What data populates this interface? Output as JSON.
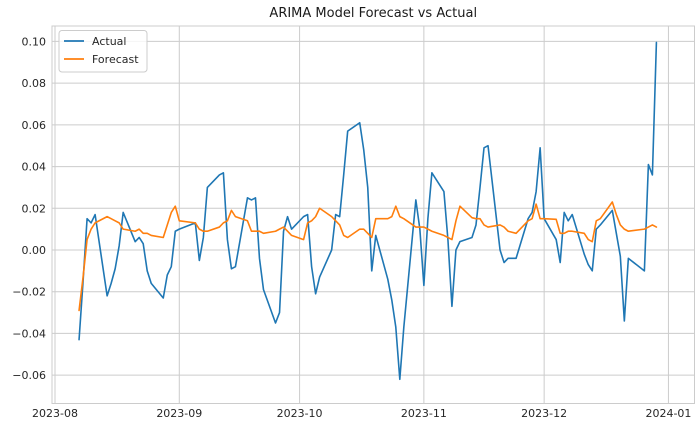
{
  "chart_data": {
    "type": "line",
    "title": "ARIMA Model Forecast vs Actual",
    "xlabel": "",
    "ylabel": "",
    "grid": true,
    "legend_position": "upper left",
    "background_color": "#ffffff",
    "grid_color": "#cccccc",
    "spine_color": "#cccccc",
    "text_color": "#262626",
    "title_color": "#1a1a1a",
    "xlim": [
      "2023-07-31T06:00:00",
      "2024-01-07T12:00:00"
    ],
    "ylim": [
      -0.0736,
      0.1074
    ],
    "y_ticks": [
      -0.06,
      -0.04,
      -0.02,
      0.0,
      0.02,
      0.04,
      0.06,
      0.08,
      0.1
    ],
    "x_tick_dates": [
      "2023-08-01",
      "2023-09-01",
      "2023-10-01",
      "2023-11-01",
      "2023-12-01",
      "2024-01-01"
    ],
    "x_tick_labels": [
      "2023-08",
      "2023-09",
      "2023-10",
      "2023-11",
      "2023-12",
      "2024-01"
    ],
    "x": [
      "2023-08-07",
      "2023-08-08",
      "2023-08-09",
      "2023-08-10",
      "2023-08-11",
      "2023-08-14",
      "2023-08-15",
      "2023-08-16",
      "2023-08-17",
      "2023-08-18",
      "2023-08-21",
      "2023-08-22",
      "2023-08-23",
      "2023-08-24",
      "2023-08-25",
      "2023-08-28",
      "2023-08-29",
      "2023-08-30",
      "2023-08-31",
      "2023-09-01",
      "2023-09-05",
      "2023-09-06",
      "2023-09-07",
      "2023-09-08",
      "2023-09-11",
      "2023-09-12",
      "2023-09-13",
      "2023-09-14",
      "2023-09-15",
      "2023-09-18",
      "2023-09-19",
      "2023-09-20",
      "2023-09-21",
      "2023-09-22",
      "2023-09-25",
      "2023-09-26",
      "2023-09-27",
      "2023-09-28",
      "2023-09-29",
      "2023-10-02",
      "2023-10-03",
      "2023-10-04",
      "2023-10-05",
      "2023-10-06",
      "2023-10-09",
      "2023-10-10",
      "2023-10-11",
      "2023-10-12",
      "2023-10-13",
      "2023-10-16",
      "2023-10-17",
      "2023-10-18",
      "2023-10-19",
      "2023-10-20",
      "2023-10-23",
      "2023-10-24",
      "2023-10-25",
      "2023-10-26",
      "2023-10-27",
      "2023-10-30",
      "2023-10-31",
      "2023-11-01",
      "2023-11-02",
      "2023-11-03",
      "2023-11-06",
      "2023-11-07",
      "2023-11-08",
      "2023-11-09",
      "2023-11-10",
      "2023-11-13",
      "2023-11-14",
      "2023-11-15",
      "2023-11-16",
      "2023-11-17",
      "2023-11-20",
      "2023-11-21",
      "2023-11-22",
      "2023-11-24",
      "2023-11-27",
      "2023-11-28",
      "2023-11-29",
      "2023-11-30",
      "2023-12-01",
      "2023-12-04",
      "2023-12-05",
      "2023-12-06",
      "2023-12-07",
      "2023-12-08",
      "2023-12-11",
      "2023-12-12",
      "2023-12-13",
      "2023-12-14",
      "2023-12-15",
      "2023-12-18",
      "2023-12-19",
      "2023-12-20",
      "2023-12-21",
      "2023-12-22",
      "2023-12-26",
      "2023-12-27",
      "2023-12-28",
      "2023-12-29"
    ],
    "series": [
      {
        "name": "Actual",
        "color": "#1f77b4",
        "values": [
          -0.043,
          -0.015,
          0.015,
          0.013,
          0.017,
          -0.022,
          -0.016,
          -0.009,
          0.002,
          0.018,
          0.004,
          0.006,
          0.003,
          -0.01,
          -0.016,
          -0.023,
          -0.012,
          -0.008,
          0.009,
          0.01,
          0.013,
          -0.005,
          0.006,
          0.03,
          0.036,
          0.037,
          0.005,
          -0.009,
          -0.008,
          0.025,
          0.024,
          0.025,
          -0.004,
          -0.019,
          -0.035,
          -0.03,
          0.009,
          0.016,
          0.01,
          0.016,
          0.017,
          -0.008,
          -0.021,
          -0.013,
          0.0,
          0.017,
          0.016,
          0.036,
          0.057,
          0.061,
          0.048,
          0.03,
          -0.01,
          0.007,
          -0.014,
          -0.024,
          -0.037,
          -0.062,
          -0.037,
          0.024,
          0.01,
          -0.017,
          0.015,
          0.037,
          0.028,
          0.005,
          -0.027,
          0.0,
          0.004,
          0.006,
          0.012,
          0.03,
          0.049,
          0.05,
          0.0,
          -0.006,
          -0.004,
          -0.004,
          0.015,
          0.018,
          0.028,
          0.049,
          0.015,
          0.005,
          -0.006,
          0.018,
          0.014,
          0.017,
          -0.002,
          -0.007,
          -0.01,
          0.01,
          0.012,
          0.019,
          0.008,
          -0.003,
          -0.034,
          -0.004,
          -0.01,
          0.041,
          0.036,
          0.0995
        ]
      },
      {
        "name": "Forecast",
        "color": "#ff7f0e",
        "values": [
          -0.029,
          -0.013,
          0.005,
          0.01,
          0.013,
          0.016,
          0.015,
          0.014,
          0.013,
          0.01,
          0.009,
          0.01,
          0.008,
          0.008,
          0.007,
          0.006,
          0.012,
          0.018,
          0.021,
          0.014,
          0.013,
          0.01,
          0.009,
          0.009,
          0.011,
          0.013,
          0.014,
          0.019,
          0.016,
          0.014,
          0.009,
          0.009,
          0.009,
          0.008,
          0.009,
          0.01,
          0.011,
          0.009,
          0.007,
          0.005,
          0.013,
          0.014,
          0.016,
          0.02,
          0.016,
          0.014,
          0.012,
          0.007,
          0.006,
          0.01,
          0.01,
          0.008,
          0.006,
          0.015,
          0.015,
          0.016,
          0.021,
          0.016,
          0.015,
          0.011,
          0.011,
          0.011,
          0.01,
          0.009,
          0.007,
          0.006,
          0.005,
          0.014,
          0.021,
          0.0155,
          0.015,
          0.015,
          0.012,
          0.011,
          0.012,
          0.011,
          0.009,
          0.008,
          0.014,
          0.015,
          0.022,
          0.015,
          0.015,
          0.0147,
          0.008,
          0.008,
          0.009,
          0.009,
          0.008,
          0.005,
          0.004,
          0.014,
          0.015,
          0.023,
          0.017,
          0.012,
          0.01,
          0.009,
          0.01,
          0.011,
          0.012,
          0.011
        ]
      }
    ],
    "legend": {
      "entries": [
        "Actual",
        "Forecast"
      ]
    }
  }
}
